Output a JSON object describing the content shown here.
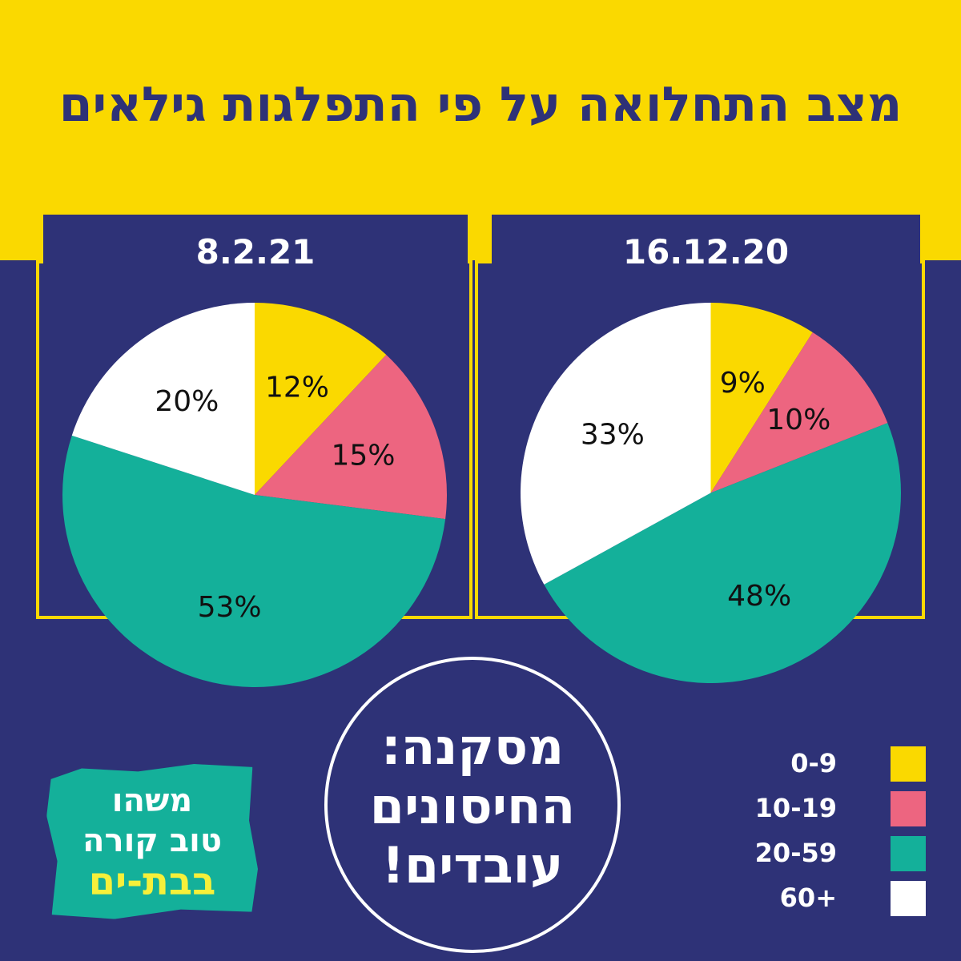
{
  "title": "מצב התחלואה על פי התפלגות גילאים",
  "colors": {
    "background": "#2e3277",
    "accent": "#fad900",
    "age_0_9": "#fad900",
    "age_10_19": "#ed6580",
    "age_20_59": "#14b09a",
    "age_60_plus": "#ffffff"
  },
  "chart_data": [
    {
      "type": "pie",
      "title": "8.2.21",
      "categories": [
        "0-9",
        "10-19",
        "20-59",
        "60+"
      ],
      "values": [
        12,
        15,
        53,
        20
      ],
      "labels": [
        "12%",
        "15%",
        "53%",
        "20%"
      ]
    },
    {
      "type": "pie",
      "title": "16.12.20",
      "categories": [
        "0-9",
        "10-19",
        "20-59",
        "60+"
      ],
      "values": [
        9,
        10,
        48,
        33
      ],
      "labels": [
        "9%",
        "10%",
        "48%",
        "33%"
      ]
    }
  ],
  "legend": {
    "placement": "bottom-right",
    "items": [
      {
        "label": "0-9",
        "color": "#fad900"
      },
      {
        "label": "10-19",
        "color": "#ed6580"
      },
      {
        "label": "20-59",
        "color": "#14b09a"
      },
      {
        "label": "60+",
        "color": "#ffffff"
      }
    ]
  },
  "conclusion": {
    "lines": [
      "מסקנה:",
      "החיסונים",
      "עובדים!"
    ]
  },
  "logo": {
    "lines": [
      "משהו",
      "טוב קורה",
      "בבת-ים"
    ]
  }
}
